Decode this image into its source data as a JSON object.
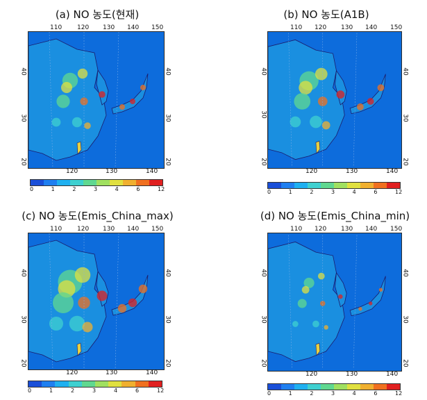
{
  "panels": [
    {
      "title": "(a)  NO  농도(현재)",
      "top_ticks": [
        "110",
        "120",
        "130",
        "140",
        "150"
      ],
      "bottom_ticks": [
        "120",
        "130",
        "140"
      ],
      "left_ticks": [
        "40",
        "30",
        "20"
      ],
      "right_ticks": [
        "40",
        "30",
        "20"
      ],
      "intensity": "moderate"
    },
    {
      "title": "(b)  NO  농도(A1B)",
      "top_ticks": [
        "110",
        "120",
        "130",
        "140",
        "150"
      ],
      "bottom_ticks": [
        "120",
        "130",
        "140"
      ],
      "left_ticks": [
        "40",
        "30",
        "20"
      ],
      "right_ticks": [
        "40",
        "30",
        "20"
      ],
      "intensity": "high"
    },
    {
      "title": "(c)  NO  농도(Emis_China_max)",
      "top_ticks": [
        "110",
        "120",
        "130",
        "140",
        "150"
      ],
      "bottom_ticks": [
        "120",
        "130",
        "140"
      ],
      "left_ticks": [
        "40",
        "30",
        "20"
      ],
      "right_ticks": [
        "40",
        "30",
        "20"
      ],
      "intensity": "very-high"
    },
    {
      "title": "(d)  NO  농도(Emis_China_min)",
      "top_ticks": [
        "110",
        "120",
        "130",
        "140",
        "150"
      ],
      "bottom_ticks": [
        "120",
        "130",
        "140"
      ],
      "left_ticks": [
        "40",
        "30",
        "20"
      ],
      "right_ticks": [
        "40",
        "30",
        "20"
      ],
      "intensity": "low"
    }
  ],
  "colorbar": {
    "labels": [
      "0",
      "1",
      "2",
      "3",
      "4",
      "6",
      "12"
    ],
    "colors": [
      "#1a4fd8",
      "#1f7ff0",
      "#1fb0f0",
      "#3fd0d0",
      "#60d890",
      "#a0e060",
      "#e0e040",
      "#f0b030",
      "#f07020",
      "#e02020"
    ]
  },
  "colors": {
    "ocean": "#0d6cdc",
    "land_base": "#1a8fe0",
    "coast": "#1b1b6b"
  }
}
